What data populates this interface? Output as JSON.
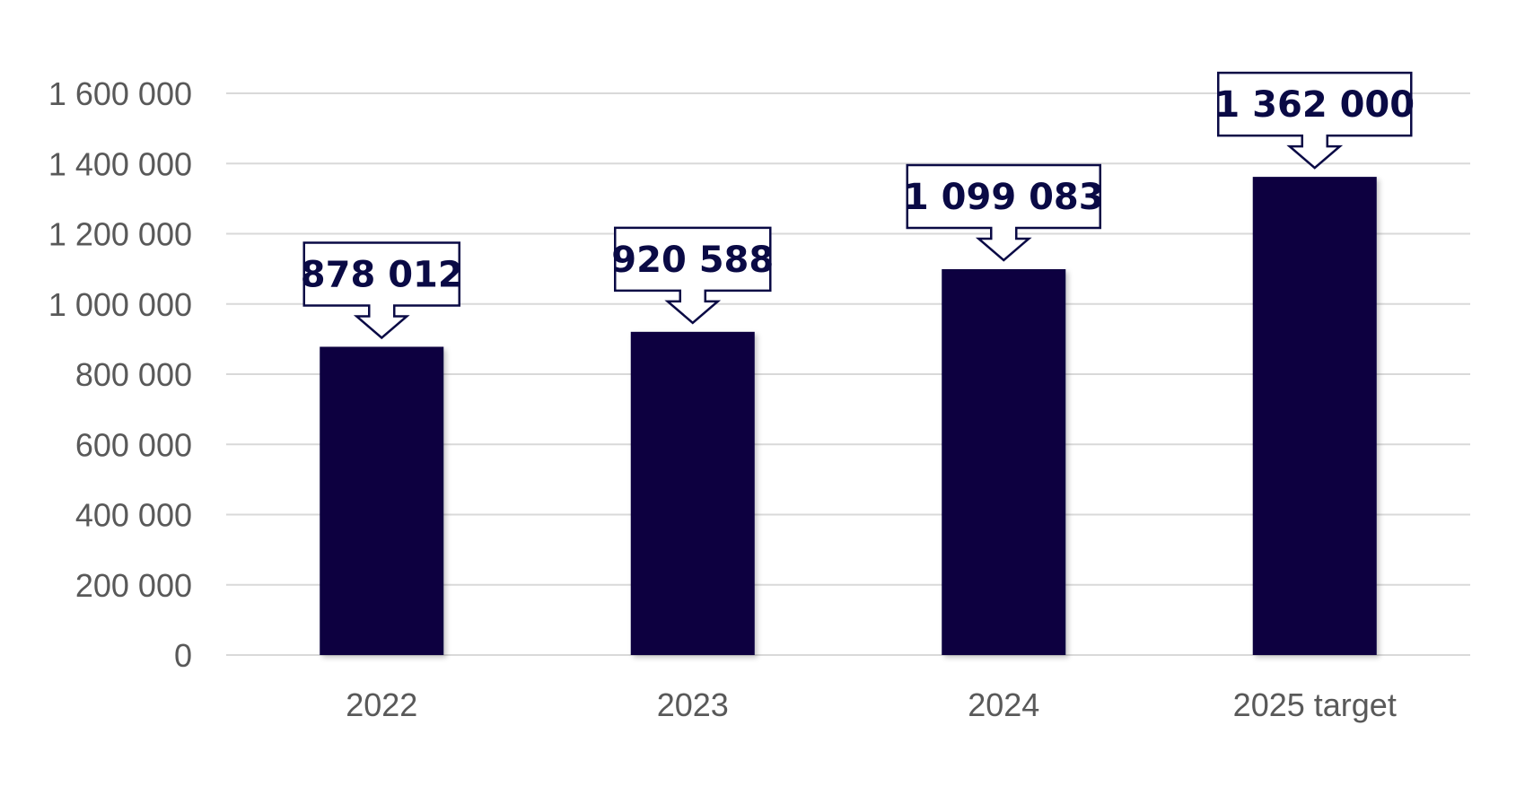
{
  "chart_data": {
    "type": "bar",
    "categories": [
      "2022",
      "2023",
      "2024",
      "2025 target"
    ],
    "values": [
      878012,
      920588,
      1099083,
      1362000
    ],
    "value_labels": [
      "878 012",
      "920 588",
      "1 099 083",
      "1 362 000"
    ],
    "y_ticks": [
      0,
      200000,
      400000,
      600000,
      800000,
      1000000,
      1200000,
      1400000,
      1600000
    ],
    "y_tick_labels": [
      "0",
      "200 000",
      "400 000",
      "600 000",
      "800 000",
      "1 000 000",
      "1 200 000",
      "1 400 000",
      "1 600 000"
    ],
    "ylim": [
      0,
      1600000
    ],
    "title": "",
    "xlabel": "",
    "ylabel": "",
    "grid": true,
    "legend": "none",
    "colors": {
      "bar": "#07053f",
      "label_text": "#0a0a45",
      "axis_text": "#595959",
      "grid": "#d9d9d9"
    }
  }
}
